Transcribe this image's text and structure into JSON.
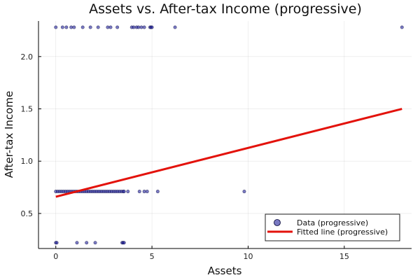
{
  "chart_data": {
    "type": "scatter",
    "title": "Assets vs. After-tax Income (progressive)",
    "xlabel": "Assets",
    "ylabel": "After-tax Income",
    "xlim": [
      -0.9,
      18.5
    ],
    "ylim": [
      0.165,
      2.34
    ],
    "xticks": [
      0,
      5,
      10,
      15
    ],
    "yticks": [
      0.5,
      1.0,
      1.5,
      2.0
    ],
    "xtick_labels": [
      "0",
      "5",
      "10",
      "15"
    ],
    "ytick_labels": [
      "0.5",
      "1.0",
      "1.5",
      "2.0"
    ],
    "grid": true,
    "legend_position": "bottom-right",
    "series": [
      {
        "name": "Data (progressive)",
        "kind": "scatter",
        "color": "#1f1f99",
        "points": [
          [
            0.0,
            2.28
          ],
          [
            0.35,
            2.28
          ],
          [
            0.55,
            2.28
          ],
          [
            0.8,
            2.28
          ],
          [
            0.95,
            2.28
          ],
          [
            1.4,
            2.28
          ],
          [
            1.8,
            2.28
          ],
          [
            2.2,
            2.28
          ],
          [
            2.7,
            2.28
          ],
          [
            2.85,
            2.28
          ],
          [
            3.2,
            2.28
          ],
          [
            3.95,
            2.28
          ],
          [
            4.05,
            2.28
          ],
          [
            4.2,
            2.28
          ],
          [
            4.3,
            2.28
          ],
          [
            4.45,
            2.28
          ],
          [
            4.6,
            2.28
          ],
          [
            4.9,
            2.28
          ],
          [
            4.95,
            2.28
          ],
          [
            5.0,
            2.28
          ],
          [
            6.2,
            2.28
          ],
          [
            18.0,
            2.28
          ],
          [
            0.0,
            0.71
          ],
          [
            0.1,
            0.71
          ],
          [
            0.2,
            0.71
          ],
          [
            0.3,
            0.71
          ],
          [
            0.4,
            0.71
          ],
          [
            0.5,
            0.71
          ],
          [
            0.6,
            0.71
          ],
          [
            0.7,
            0.71
          ],
          [
            0.8,
            0.71
          ],
          [
            0.9,
            0.71
          ],
          [
            1.0,
            0.71
          ],
          [
            1.1,
            0.71
          ],
          [
            1.2,
            0.71
          ],
          [
            1.3,
            0.71
          ],
          [
            1.4,
            0.71
          ],
          [
            1.5,
            0.71
          ],
          [
            1.6,
            0.71
          ],
          [
            1.7,
            0.71
          ],
          [
            1.8,
            0.71
          ],
          [
            1.9,
            0.71
          ],
          [
            2.0,
            0.71
          ],
          [
            2.1,
            0.71
          ],
          [
            2.2,
            0.71
          ],
          [
            2.3,
            0.71
          ],
          [
            2.4,
            0.71
          ],
          [
            2.5,
            0.71
          ],
          [
            2.6,
            0.71
          ],
          [
            2.7,
            0.71
          ],
          [
            2.8,
            0.71
          ],
          [
            2.9,
            0.71
          ],
          [
            3.0,
            0.71
          ],
          [
            3.1,
            0.71
          ],
          [
            3.2,
            0.71
          ],
          [
            3.3,
            0.71
          ],
          [
            3.4,
            0.71
          ],
          [
            3.5,
            0.71
          ],
          [
            3.55,
            0.71
          ],
          [
            3.75,
            0.71
          ],
          [
            4.35,
            0.71
          ],
          [
            4.6,
            0.71
          ],
          [
            4.75,
            0.71
          ],
          [
            5.3,
            0.71
          ],
          [
            9.8,
            0.71
          ],
          [
            0.0,
            0.22
          ],
          [
            0.05,
            0.22
          ],
          [
            1.1,
            0.22
          ],
          [
            1.6,
            0.22
          ],
          [
            2.05,
            0.22
          ],
          [
            3.45,
            0.22
          ],
          [
            3.5,
            0.22
          ],
          [
            3.55,
            0.22
          ]
        ]
      },
      {
        "name": "Fitted line (progressive)",
        "kind": "line",
        "color": "#e3120b",
        "x": [
          0.0,
          18.0
        ],
        "y": [
          0.66,
          1.5
        ]
      }
    ]
  }
}
